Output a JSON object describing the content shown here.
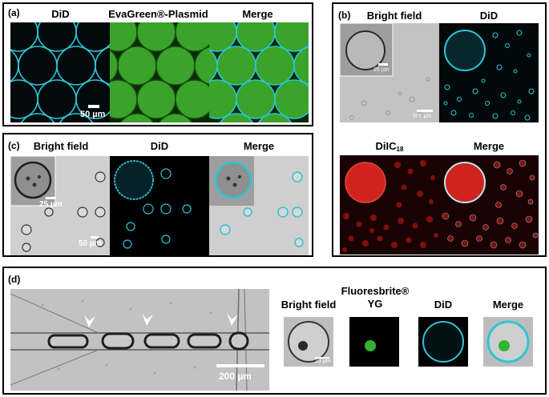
{
  "panels": {
    "a": {
      "label": "(a)",
      "titles": [
        "DiD",
        "EvaGreen®-Plasmid",
        "Merge"
      ],
      "scalebar": "50 µm"
    },
    "b": {
      "label": "(b)",
      "titles": [
        "Bright field",
        "DiD",
        "DiIC",
        "Merge"
      ],
      "diic_subscript": "18",
      "inset_scalebar": "25 µm",
      "scalebar": "500 µm"
    },
    "c": {
      "label": "(c)",
      "titles": [
        "Bright field",
        "DiD",
        "Merge"
      ],
      "inset_scalebar": "25 µm",
      "scalebar": "50 µm"
    },
    "d": {
      "label": "(d)",
      "titles": [
        "Bright field",
        "Fluoresbrite®",
        "YG",
        "DiD",
        "Merge"
      ],
      "channel_scalebar": "200 µm",
      "small_scalebar": "25 µm"
    }
  },
  "colors": {
    "cyan": "#2fc4d6",
    "green": "#34b234",
    "red": "#d0231f",
    "gray": "#c8c8c8"
  }
}
